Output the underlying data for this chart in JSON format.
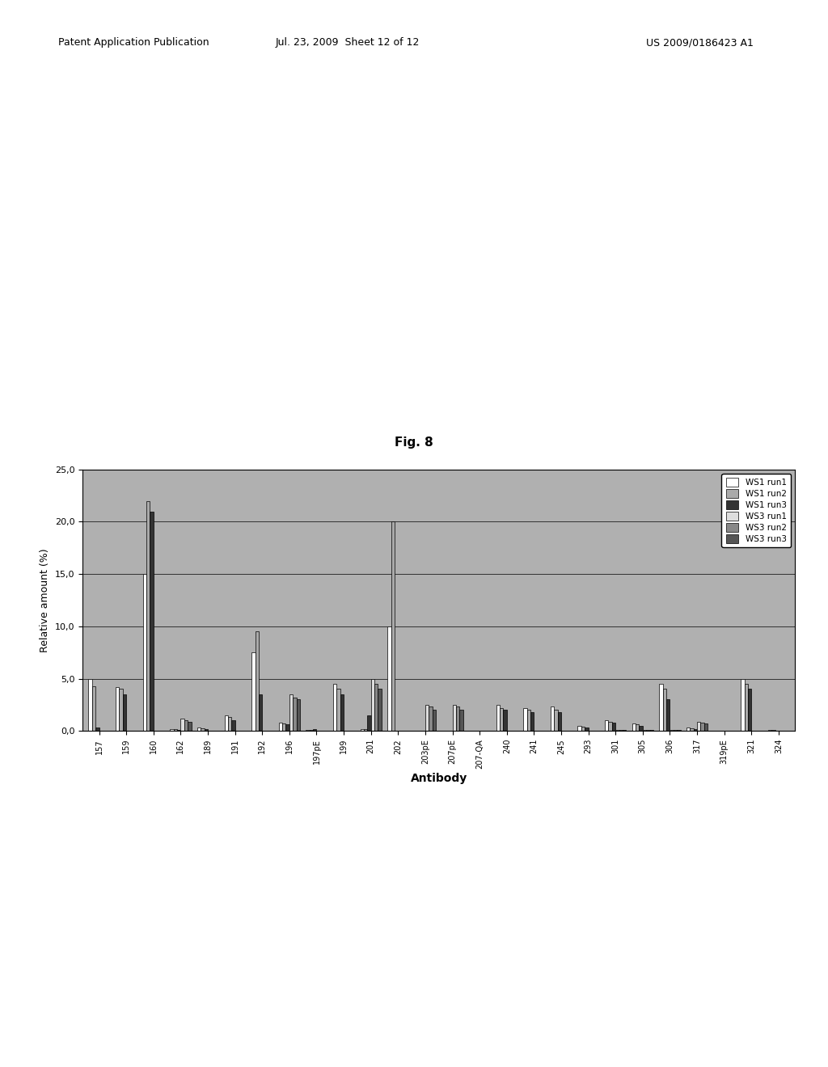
{
  "fig_label": "Fig. 8",
  "xlabel": "Antibody",
  "ylabel": "Relative amount (%)",
  "ylim": [
    0,
    25.0
  ],
  "yticks": [
    0.0,
    5.0,
    10.0,
    15.0,
    20.0,
    25.0
  ],
  "yticklabels": [
    "0,0",
    "5,0",
    "10,0",
    "15,0",
    "20,0",
    "25,0"
  ],
  "categories": [
    "157",
    "159",
    "160",
    "162",
    "189",
    "191",
    "192",
    "196",
    "197pE",
    "199",
    "201",
    "202",
    "203pE",
    "207pE",
    "207-QA",
    "240",
    "241",
    "245",
    "293",
    "301",
    "305",
    "306",
    "317",
    "319pE",
    "321",
    "324"
  ],
  "series": {
    "WS1 run1": [
      5.0,
      4.2,
      15.0,
      0.2,
      0.3,
      1.5,
      7.5,
      0.8,
      0.1,
      4.5,
      0.2,
      10.0,
      0.05,
      0.05,
      0.05,
      2.5,
      2.2,
      2.3,
      0.5,
      1.0,
      0.7,
      4.5,
      0.3,
      0.05,
      5.0,
      0.1
    ],
    "WS1 run2": [
      4.3,
      4.0,
      22.0,
      0.15,
      0.25,
      1.3,
      9.5,
      0.7,
      0.1,
      4.0,
      0.2,
      20.0,
      0.05,
      0.05,
      0.05,
      2.2,
      2.0,
      2.0,
      0.4,
      0.9,
      0.6,
      4.0,
      0.25,
      0.05,
      4.5,
      0.1
    ],
    "WS1 run3": [
      0.3,
      3.5,
      21.0,
      0.1,
      0.2,
      1.0,
      3.5,
      0.6,
      0.15,
      3.5,
      1.5,
      0.05,
      0.05,
      0.05,
      0.05,
      2.0,
      1.8,
      1.8,
      0.3,
      0.8,
      0.5,
      3.0,
      0.2,
      0.05,
      4.0,
      0.05
    ],
    "WS3 run1": [
      0.05,
      0.05,
      0.05,
      1.2,
      0.05,
      0.05,
      0.05,
      3.5,
      0.05,
      0.05,
      5.0,
      0.05,
      2.5,
      2.5,
      0.05,
      0.05,
      0.05,
      0.05,
      0.05,
      0.1,
      0.1,
      0.1,
      0.9,
      0.05,
      0.05,
      0.05
    ],
    "WS3 run2": [
      0.05,
      0.05,
      0.05,
      1.0,
      0.05,
      0.05,
      0.05,
      3.2,
      0.05,
      0.05,
      4.5,
      0.05,
      2.3,
      2.3,
      0.05,
      0.05,
      0.05,
      0.05,
      0.05,
      0.08,
      0.08,
      0.08,
      0.8,
      0.05,
      0.05,
      0.05
    ],
    "WS3 run3": [
      0.05,
      0.05,
      0.05,
      0.9,
      0.05,
      0.05,
      0.05,
      3.0,
      0.05,
      0.05,
      4.0,
      0.05,
      2.0,
      2.0,
      0.05,
      0.05,
      0.05,
      0.05,
      0.05,
      0.06,
      0.06,
      0.06,
      0.7,
      0.05,
      0.05,
      0.05
    ]
  },
  "colors": {
    "WS1 run1": "#ffffff",
    "WS1 run2": "#aaaaaa",
    "WS1 run3": "#333333",
    "WS3 run1": "#dddddd",
    "WS3 run2": "#888888",
    "WS3 run3": "#555555"
  },
  "bar_edge_color": "#000000",
  "background_color": "#b0b0b0",
  "grid_color": "#000000",
  "page_color": "#ffffff",
  "header_left": "Patent Application Publication",
  "header_center": "Jul. 23, 2009  Sheet 12 of 12",
  "header_right": "US 2009/0186423 A1"
}
